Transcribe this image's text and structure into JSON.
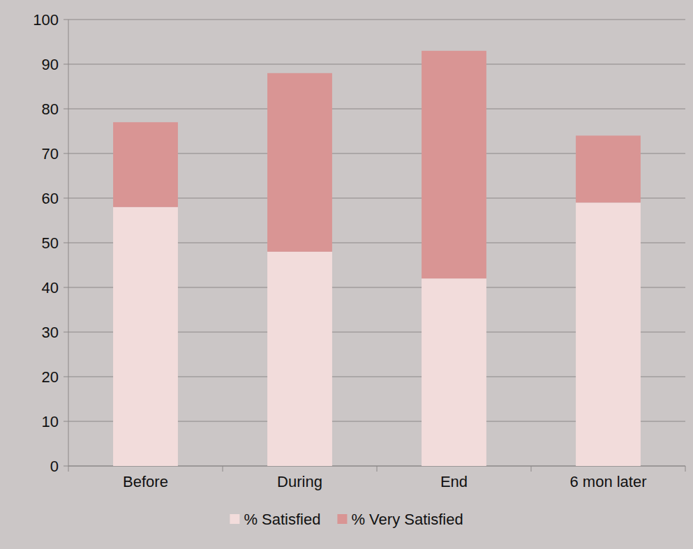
{
  "chart_data": {
    "type": "bar",
    "stacked": true,
    "grid": true,
    "legend": "bottom",
    "categories": [
      "Before",
      "During",
      "End",
      "6 mon later"
    ],
    "series": [
      {
        "name": "% Satisfied",
        "color": "#f2dcdb",
        "values": [
          58,
          48,
          42,
          59
        ]
      },
      {
        "name": "% Very Satisfied",
        "color": "#d99594",
        "values": [
          19,
          40,
          51,
          15
        ]
      }
    ],
    "ylim": [
      0,
      100
    ],
    "yticks": [
      0,
      10,
      20,
      30,
      40,
      50,
      60,
      70,
      80,
      90,
      100
    ]
  }
}
